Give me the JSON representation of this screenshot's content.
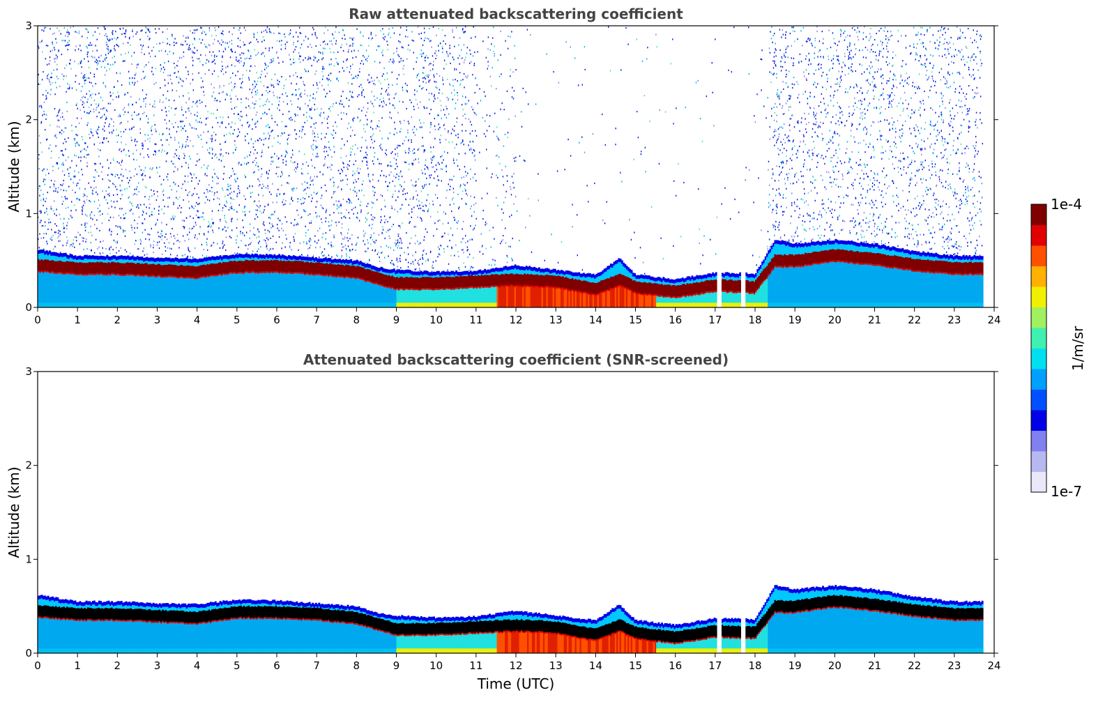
{
  "chart_data": [
    {
      "type": "heatmap",
      "title": "Raw attenuated backscattering coefficient",
      "xlabel": "",
      "ylabel": "Altitude (km)",
      "xlim": [
        0,
        24
      ],
      "ylim": [
        0,
        3
      ],
      "x_ticks": [
        "0",
        "1",
        "2",
        "3",
        "4",
        "5",
        "6",
        "7",
        "8",
        "9",
        "10",
        "11",
        "12",
        "13",
        "14",
        "15",
        "16",
        "17",
        "18",
        "19",
        "20",
        "21",
        "22",
        "23",
        "24"
      ],
      "y_ticks": [
        "0",
        "1",
        "2",
        "3"
      ],
      "data_end_time": 23.7,
      "gap_times": [
        17.1,
        17.7
      ],
      "noise_level": "high",
      "noise_free_interval": [
        12.0,
        18.3
      ],
      "layer_top_km": [
        {
          "t": 0,
          "h": 0.62
        },
        {
          "t": 1,
          "h": 0.55
        },
        {
          "t": 2,
          "h": 0.55
        },
        {
          "t": 3,
          "h": 0.53
        },
        {
          "t": 4,
          "h": 0.52
        },
        {
          "t": 5,
          "h": 0.57
        },
        {
          "t": 6,
          "h": 0.56
        },
        {
          "t": 7,
          "h": 0.53
        },
        {
          "t": 8,
          "h": 0.5
        },
        {
          "t": 8.5,
          "h": 0.43
        },
        {
          "t": 9,
          "h": 0.4
        },
        {
          "t": 10,
          "h": 0.38
        },
        {
          "t": 11,
          "h": 0.39
        },
        {
          "t": 12,
          "h": 0.45
        },
        {
          "t": 13,
          "h": 0.4
        },
        {
          "t": 14,
          "h": 0.35
        },
        {
          "t": 14.6,
          "h": 0.52
        },
        {
          "t": 15,
          "h": 0.35
        },
        {
          "t": 16,
          "h": 0.3
        },
        {
          "t": 17,
          "h": 0.37
        },
        {
          "t": 18,
          "h": 0.36
        },
        {
          "t": 18.5,
          "h": 0.72
        },
        {
          "t": 19,
          "h": 0.68
        },
        {
          "t": 20,
          "h": 0.72
        },
        {
          "t": 21,
          "h": 0.68
        },
        {
          "t": 22,
          "h": 0.6
        },
        {
          "t": 23,
          "h": 0.55
        },
        {
          "t": 23.7,
          "h": 0.55
        }
      ],
      "layer_peak_km": [
        {
          "t": 0,
          "h": 0.45
        },
        {
          "t": 1,
          "h": 0.42
        },
        {
          "t": 2,
          "h": 0.42
        },
        {
          "t": 3,
          "h": 0.4
        },
        {
          "t": 4,
          "h": 0.38
        },
        {
          "t": 5,
          "h": 0.44
        },
        {
          "t": 6,
          "h": 0.44
        },
        {
          "t": 7,
          "h": 0.42
        },
        {
          "t": 8,
          "h": 0.38
        },
        {
          "t": 8.5,
          "h": 0.32
        },
        {
          "t": 9,
          "h": 0.26
        },
        {
          "t": 10,
          "h": 0.26
        },
        {
          "t": 11,
          "h": 0.28
        },
        {
          "t": 12,
          "h": 0.3
        },
        {
          "t": 13,
          "h": 0.28
        },
        {
          "t": 14,
          "h": 0.2
        },
        {
          "t": 14.6,
          "h": 0.3
        },
        {
          "t": 15,
          "h": 0.22
        },
        {
          "t": 16,
          "h": 0.17
        },
        {
          "t": 17,
          "h": 0.24
        },
        {
          "t": 18,
          "h": 0.22
        },
        {
          "t": 18.5,
          "h": 0.5
        },
        {
          "t": 19,
          "h": 0.5
        },
        {
          "t": 20,
          "h": 0.56
        },
        {
          "t": 21,
          "h": 0.52
        },
        {
          "t": 22,
          "h": 0.46
        },
        {
          "t": 23,
          "h": 0.42
        },
        {
          "t": 23.7,
          "h": 0.42
        }
      ]
    },
    {
      "type": "heatmap",
      "title": "Attenuated backscattering coefficient (SNR-screened)",
      "xlabel": "Time (UTC)",
      "ylabel": "Altitude (km)",
      "xlim": [
        0,
        24
      ],
      "ylim": [
        0,
        3
      ],
      "x_ticks": [
        "0",
        "1",
        "2",
        "3",
        "4",
        "5",
        "6",
        "7",
        "8",
        "9",
        "10",
        "11",
        "12",
        "13",
        "14",
        "15",
        "16",
        "17",
        "18",
        "19",
        "20",
        "21",
        "22",
        "23",
        "24"
      ],
      "y_ticks": [
        "0",
        "1",
        "2",
        "3"
      ],
      "data_end_time": 23.7,
      "gap_times": [
        17.1,
        17.7
      ],
      "noise_level": "screened",
      "layer_top_km": "same as panel 1",
      "layer_peak_km": "same as panel 1"
    }
  ],
  "colorbar": {
    "label": "1/m/sr",
    "max_label": "1e-4",
    "min_label": "1e-7",
    "colors": [
      "#e8e8f8",
      "#b8b8f0",
      "#8080f0",
      "#0000e8",
      "#0050ff",
      "#00a0ff",
      "#00e0f0",
      "#40f0b0",
      "#a0f060",
      "#f0f000",
      "#ffb000",
      "#ff5000",
      "#e00000",
      "#800000"
    ]
  }
}
